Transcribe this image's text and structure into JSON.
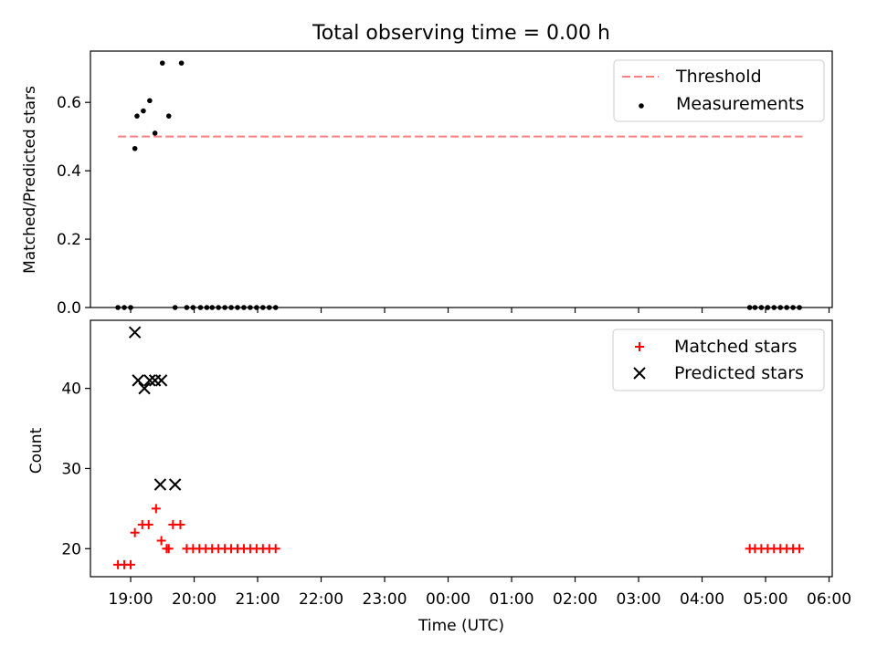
{
  "figure_title": "Total observing time = 0.00 h",
  "colors": {
    "threshold": "#ff7f7f",
    "measurements": "#000000",
    "matched": "#ff0000",
    "predicted": "#000000"
  },
  "chart_data": [
    {
      "type": "scatter",
      "title": "Total observing time = 0.00 h",
      "xlabel": "",
      "ylabel": "Matched/Predicted stars",
      "ylim": [
        0,
        0.75
      ],
      "yticks": [
        0.0,
        0.2,
        0.4,
        0.6
      ],
      "ytick_labels": [
        "0.0",
        "0.2",
        "0.4",
        "0.6"
      ],
      "xlim": [
        "18:22",
        "06:03"
      ],
      "xticks": [
        "19:00",
        "20:00",
        "21:00",
        "22:00",
        "23:00",
        "00:00",
        "01:00",
        "02:00",
        "03:00",
        "04:00",
        "05:00",
        "06:00"
      ],
      "legend_position": "top-right",
      "series": [
        {
          "name": "Threshold",
          "style": "dashed-line",
          "x": [
            "18:48",
            "05:35"
          ],
          "y": [
            0.5,
            0.5
          ]
        },
        {
          "name": "Measurements",
          "style": "dot",
          "x": [
            "18:48",
            "18:54",
            "19:00",
            "19:04",
            "19:06",
            "19:12",
            "19:18",
            "19:23",
            "19:30",
            "19:36",
            "19:42",
            "19:48",
            "19:53",
            "19:59",
            "20:06",
            "20:12",
            "20:17",
            "20:23",
            "20:29",
            "20:35",
            "20:41",
            "20:47",
            "20:53",
            "20:59",
            "21:05",
            "21:11",
            "21:17",
            "04:45",
            "04:50",
            "04:56",
            "05:02",
            "05:08",
            "05:14",
            "05:20",
            "05:26",
            "05:32"
          ],
          "y": [
            0.0,
            0.0,
            0.0,
            0.465,
            0.56,
            0.575,
            0.605,
            0.51,
            0.715,
            0.56,
            0.0,
            0.715,
            0.0,
            0.0,
            0.0,
            0.0,
            0.0,
            0.0,
            0.0,
            0.0,
            0.0,
            0.0,
            0.0,
            0.0,
            0.0,
            0.0,
            0.0,
            0.0,
            0.0,
            0.0,
            0.0,
            0.0,
            0.0,
            0.0,
            0.0,
            0.0
          ]
        }
      ]
    },
    {
      "type": "scatter",
      "xlabel": "Time (UTC)",
      "ylabel": "Count",
      "ylim": [
        16.5,
        48.5
      ],
      "yticks": [
        20,
        30,
        40
      ],
      "xlim": [
        "18:22",
        "06:03"
      ],
      "xticks": [
        "19:00",
        "20:00",
        "21:00",
        "22:00",
        "23:00",
        "00:00",
        "01:00",
        "02:00",
        "03:00",
        "04:00",
        "05:00",
        "06:00"
      ],
      "legend_position": "top-right",
      "series": [
        {
          "name": "Matched stars",
          "style": "plus",
          "x": [
            "18:48",
            "18:54",
            "19:00",
            "19:04",
            "19:11",
            "19:17",
            "19:24",
            "19:29",
            "19:34",
            "19:36",
            "19:40",
            "19:47",
            "19:53",
            "19:59",
            "20:05",
            "20:11",
            "20:17",
            "20:23",
            "20:29",
            "20:35",
            "20:41",
            "20:47",
            "20:53",
            "20:59",
            "21:05",
            "21:11",
            "21:17",
            "04:45",
            "04:50",
            "04:56",
            "05:02",
            "05:08",
            "05:14",
            "05:20",
            "05:26",
            "05:32"
          ],
          "y": [
            18,
            18,
            18,
            22,
            23,
            23,
            25,
            21,
            20,
            20,
            23,
            23,
            20,
            20,
            20,
            20,
            20,
            20,
            20,
            20,
            20,
            20,
            20,
            20,
            20,
            20,
            20,
            20,
            20,
            20,
            20,
            20,
            20,
            20,
            20,
            20
          ]
        },
        {
          "name": "Predicted stars",
          "style": "x",
          "x": [
            "19:04",
            "19:07",
            "19:13",
            "19:18",
            "19:23",
            "19:28",
            "19:29",
            "19:42"
          ],
          "y": [
            47,
            41,
            40,
            41,
            41,
            28,
            41,
            28
          ]
        }
      ]
    }
  ]
}
